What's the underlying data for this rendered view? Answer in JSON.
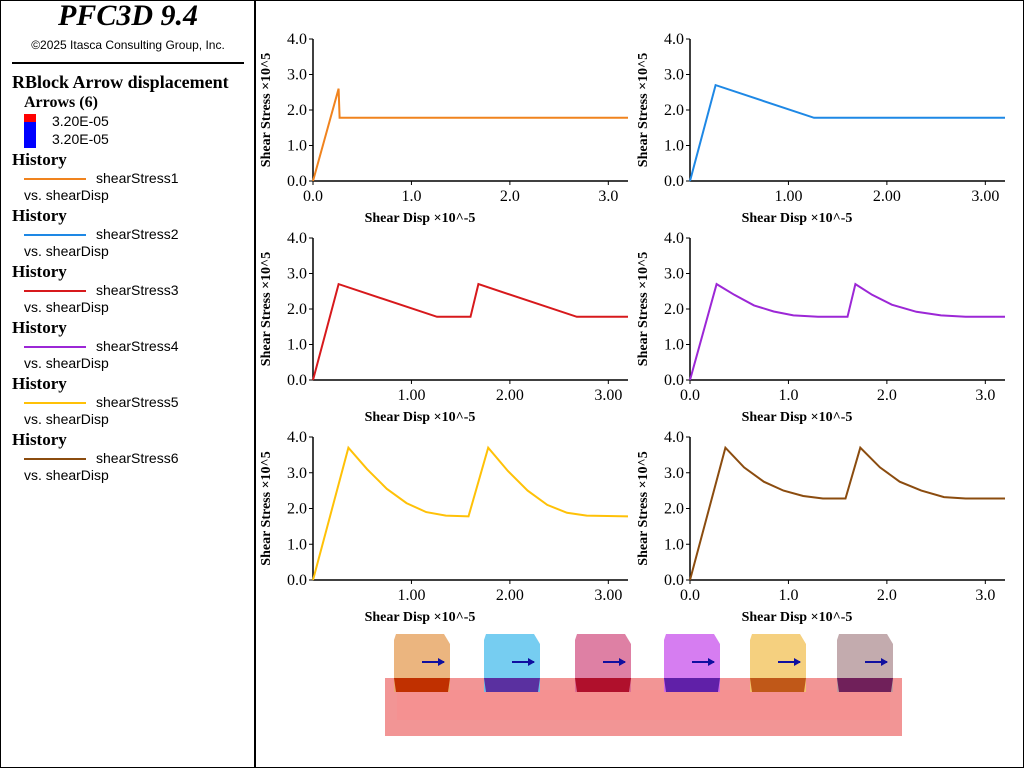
{
  "sidebar": {
    "app_title": "PFC3D 9.4",
    "copyright": "©2025 Itasca Consulting Group, Inc.",
    "legend_title": "RBlock Arrow displacement",
    "arrows_title": "Arrows (6)",
    "arrow_max": "3.20E-05",
    "arrow_min": "3.20E-05",
    "arrow_max_color": "#ff0000",
    "arrow_min_color": "#0000ff",
    "histories": [
      {
        "title": "History",
        "name": "shearStress1",
        "vs": "vs. shearDisp",
        "color": "#f0831e"
      },
      {
        "title": "History",
        "name": "shearStress2",
        "vs": "vs. shearDisp",
        "color": "#1e88e5"
      },
      {
        "title": "History",
        "name": "shearStress3",
        "vs": "vs. shearDisp",
        "color": "#d7191c"
      },
      {
        "title": "History",
        "name": "shearStress4",
        "vs": "vs. shearDisp",
        "color": "#9c27d6"
      },
      {
        "title": "History",
        "name": "shearStress5",
        "vs": "vs. shearDisp",
        "color": "#ffc107"
      },
      {
        "title": "History",
        "name": "shearStress6",
        "vs": "vs. shearDisp",
        "color": "#8b4c0f"
      }
    ]
  },
  "chart_data": [
    {
      "type": "line",
      "name": "shearStress1",
      "color": "#f0831e",
      "xlabel": "Shear Disp ×10^-5",
      "ylabel": "Shear Stress ×10^5",
      "xlim": [
        0,
        3.2
      ],
      "ylim": [
        0,
        4
      ],
      "xticks": [
        "0.0",
        "1.0",
        "2.0",
        "3.0"
      ],
      "xtick_vals": [
        0,
        1,
        2,
        3
      ],
      "yticks": [
        "0.0",
        "1.0",
        "2.0",
        "3.0",
        "4.0"
      ],
      "x": [
        0,
        0.26,
        0.27,
        3.2
      ],
      "y": [
        0,
        2.6,
        1.78,
        1.78
      ]
    },
    {
      "type": "line",
      "name": "shearStress2",
      "color": "#1e88e5",
      "xlabel": "Shear Disp ×10^-5",
      "ylabel": "Shear Stress ×10^5",
      "xlim": [
        0,
        3.2
      ],
      "ylim": [
        0,
        4
      ],
      "xticks": [
        "1.00",
        "2.00",
        "3.00"
      ],
      "xtick_vals": [
        1,
        2,
        3
      ],
      "yticks": [
        "0.0",
        "1.0",
        "2.0",
        "3.0",
        "4.0"
      ],
      "x": [
        0,
        0.26,
        1.26,
        3.2
      ],
      "y": [
        0,
        2.7,
        1.78,
        1.78
      ]
    },
    {
      "type": "line",
      "name": "shearStress3",
      "color": "#d7191c",
      "xlabel": "Shear Disp ×10^-5",
      "ylabel": "Shear Stress ×10^5",
      "xlim": [
        0,
        3.2
      ],
      "ylim": [
        0,
        4
      ],
      "xticks": [
        "1.00",
        "2.00",
        "3.00"
      ],
      "xtick_vals": [
        1,
        2,
        3
      ],
      "yticks": [
        "0.0",
        "1.0",
        "2.0",
        "3.0",
        "4.0"
      ],
      "x": [
        0,
        0.26,
        1.26,
        1.6,
        1.68,
        2.68,
        3.2
      ],
      "y": [
        0,
        2.7,
        1.78,
        1.78,
        2.7,
        1.78,
        1.78
      ]
    },
    {
      "type": "line",
      "name": "shearStress4",
      "color": "#9c27d6",
      "xlabel": "Shear Disp ×10^-5",
      "ylabel": "Shear Stress ×10^5",
      "xlim": [
        0,
        3.2
      ],
      "ylim": [
        0,
        4
      ],
      "xticks": [
        "0.0",
        "1.0",
        "2.0",
        "3.0"
      ],
      "xtick_vals": [
        0,
        1,
        2,
        3
      ],
      "yticks": [
        "0.0",
        "1.0",
        "2.0",
        "3.0",
        "4.0"
      ],
      "x": [
        0,
        0.27,
        0.45,
        0.65,
        0.85,
        1.05,
        1.3,
        1.6,
        1.68,
        1.85,
        2.05,
        2.3,
        2.55,
        2.8,
        3.2
      ],
      "y": [
        0,
        2.7,
        2.4,
        2.1,
        1.93,
        1.82,
        1.78,
        1.78,
        2.7,
        2.4,
        2.12,
        1.92,
        1.82,
        1.78,
        1.78
      ]
    },
    {
      "type": "line",
      "name": "shearStress5",
      "color": "#ffc107",
      "xlabel": "Shear Disp ×10^-5",
      "ylabel": "Shear Stress ×10^5",
      "xlim": [
        0,
        3.2
      ],
      "ylim": [
        0,
        4
      ],
      "xticks": [
        "1.00",
        "2.00",
        "3.00"
      ],
      "xtick_vals": [
        1,
        2,
        3
      ],
      "yticks": [
        "0.0",
        "1.0",
        "2.0",
        "3.0",
        "4.0"
      ],
      "x": [
        0,
        0.36,
        0.55,
        0.75,
        0.95,
        1.15,
        1.35,
        1.58,
        1.78,
        1.98,
        2.18,
        2.38,
        2.58,
        2.78,
        3.2
      ],
      "y": [
        0,
        3.7,
        3.1,
        2.55,
        2.15,
        1.9,
        1.8,
        1.78,
        3.7,
        3.05,
        2.5,
        2.1,
        1.88,
        1.8,
        1.78
      ]
    },
    {
      "type": "line",
      "name": "shearStress6",
      "color": "#8b4c0f",
      "xlabel": "Shear Disp ×10^-5",
      "ylabel": "Shear Stress ×10^5",
      "xlim": [
        0,
        3.2
      ],
      "ylim": [
        0,
        4
      ],
      "xticks": [
        "0.0",
        "1.0",
        "2.0",
        "3.0"
      ],
      "xtick_vals": [
        0,
        1,
        2,
        3
      ],
      "yticks": [
        "0.0",
        "1.0",
        "2.0",
        "3.0",
        "4.0"
      ],
      "x": [
        0,
        0.36,
        0.55,
        0.75,
        0.95,
        1.15,
        1.35,
        1.58,
        1.73,
        1.93,
        2.13,
        2.35,
        2.58,
        2.8,
        3.2
      ],
      "y": [
        0,
        3.7,
        3.15,
        2.75,
        2.5,
        2.35,
        2.28,
        2.28,
        3.7,
        3.15,
        2.75,
        2.5,
        2.32,
        2.28,
        2.28
      ]
    }
  ],
  "scene": {
    "base_color": "#f08282",
    "block_colors": [
      "#e8a868",
      "#5ec4ee",
      "#d86a94",
      "#cf66ee",
      "#f3c868",
      "#b89ca0"
    ],
    "block_bottom_colors": [
      "#c03000",
      "#5a30a0",
      "#b0102c",
      "#6020a8",
      "#c05818",
      "#70205a"
    ],
    "arrow_color": "#1010a0"
  }
}
